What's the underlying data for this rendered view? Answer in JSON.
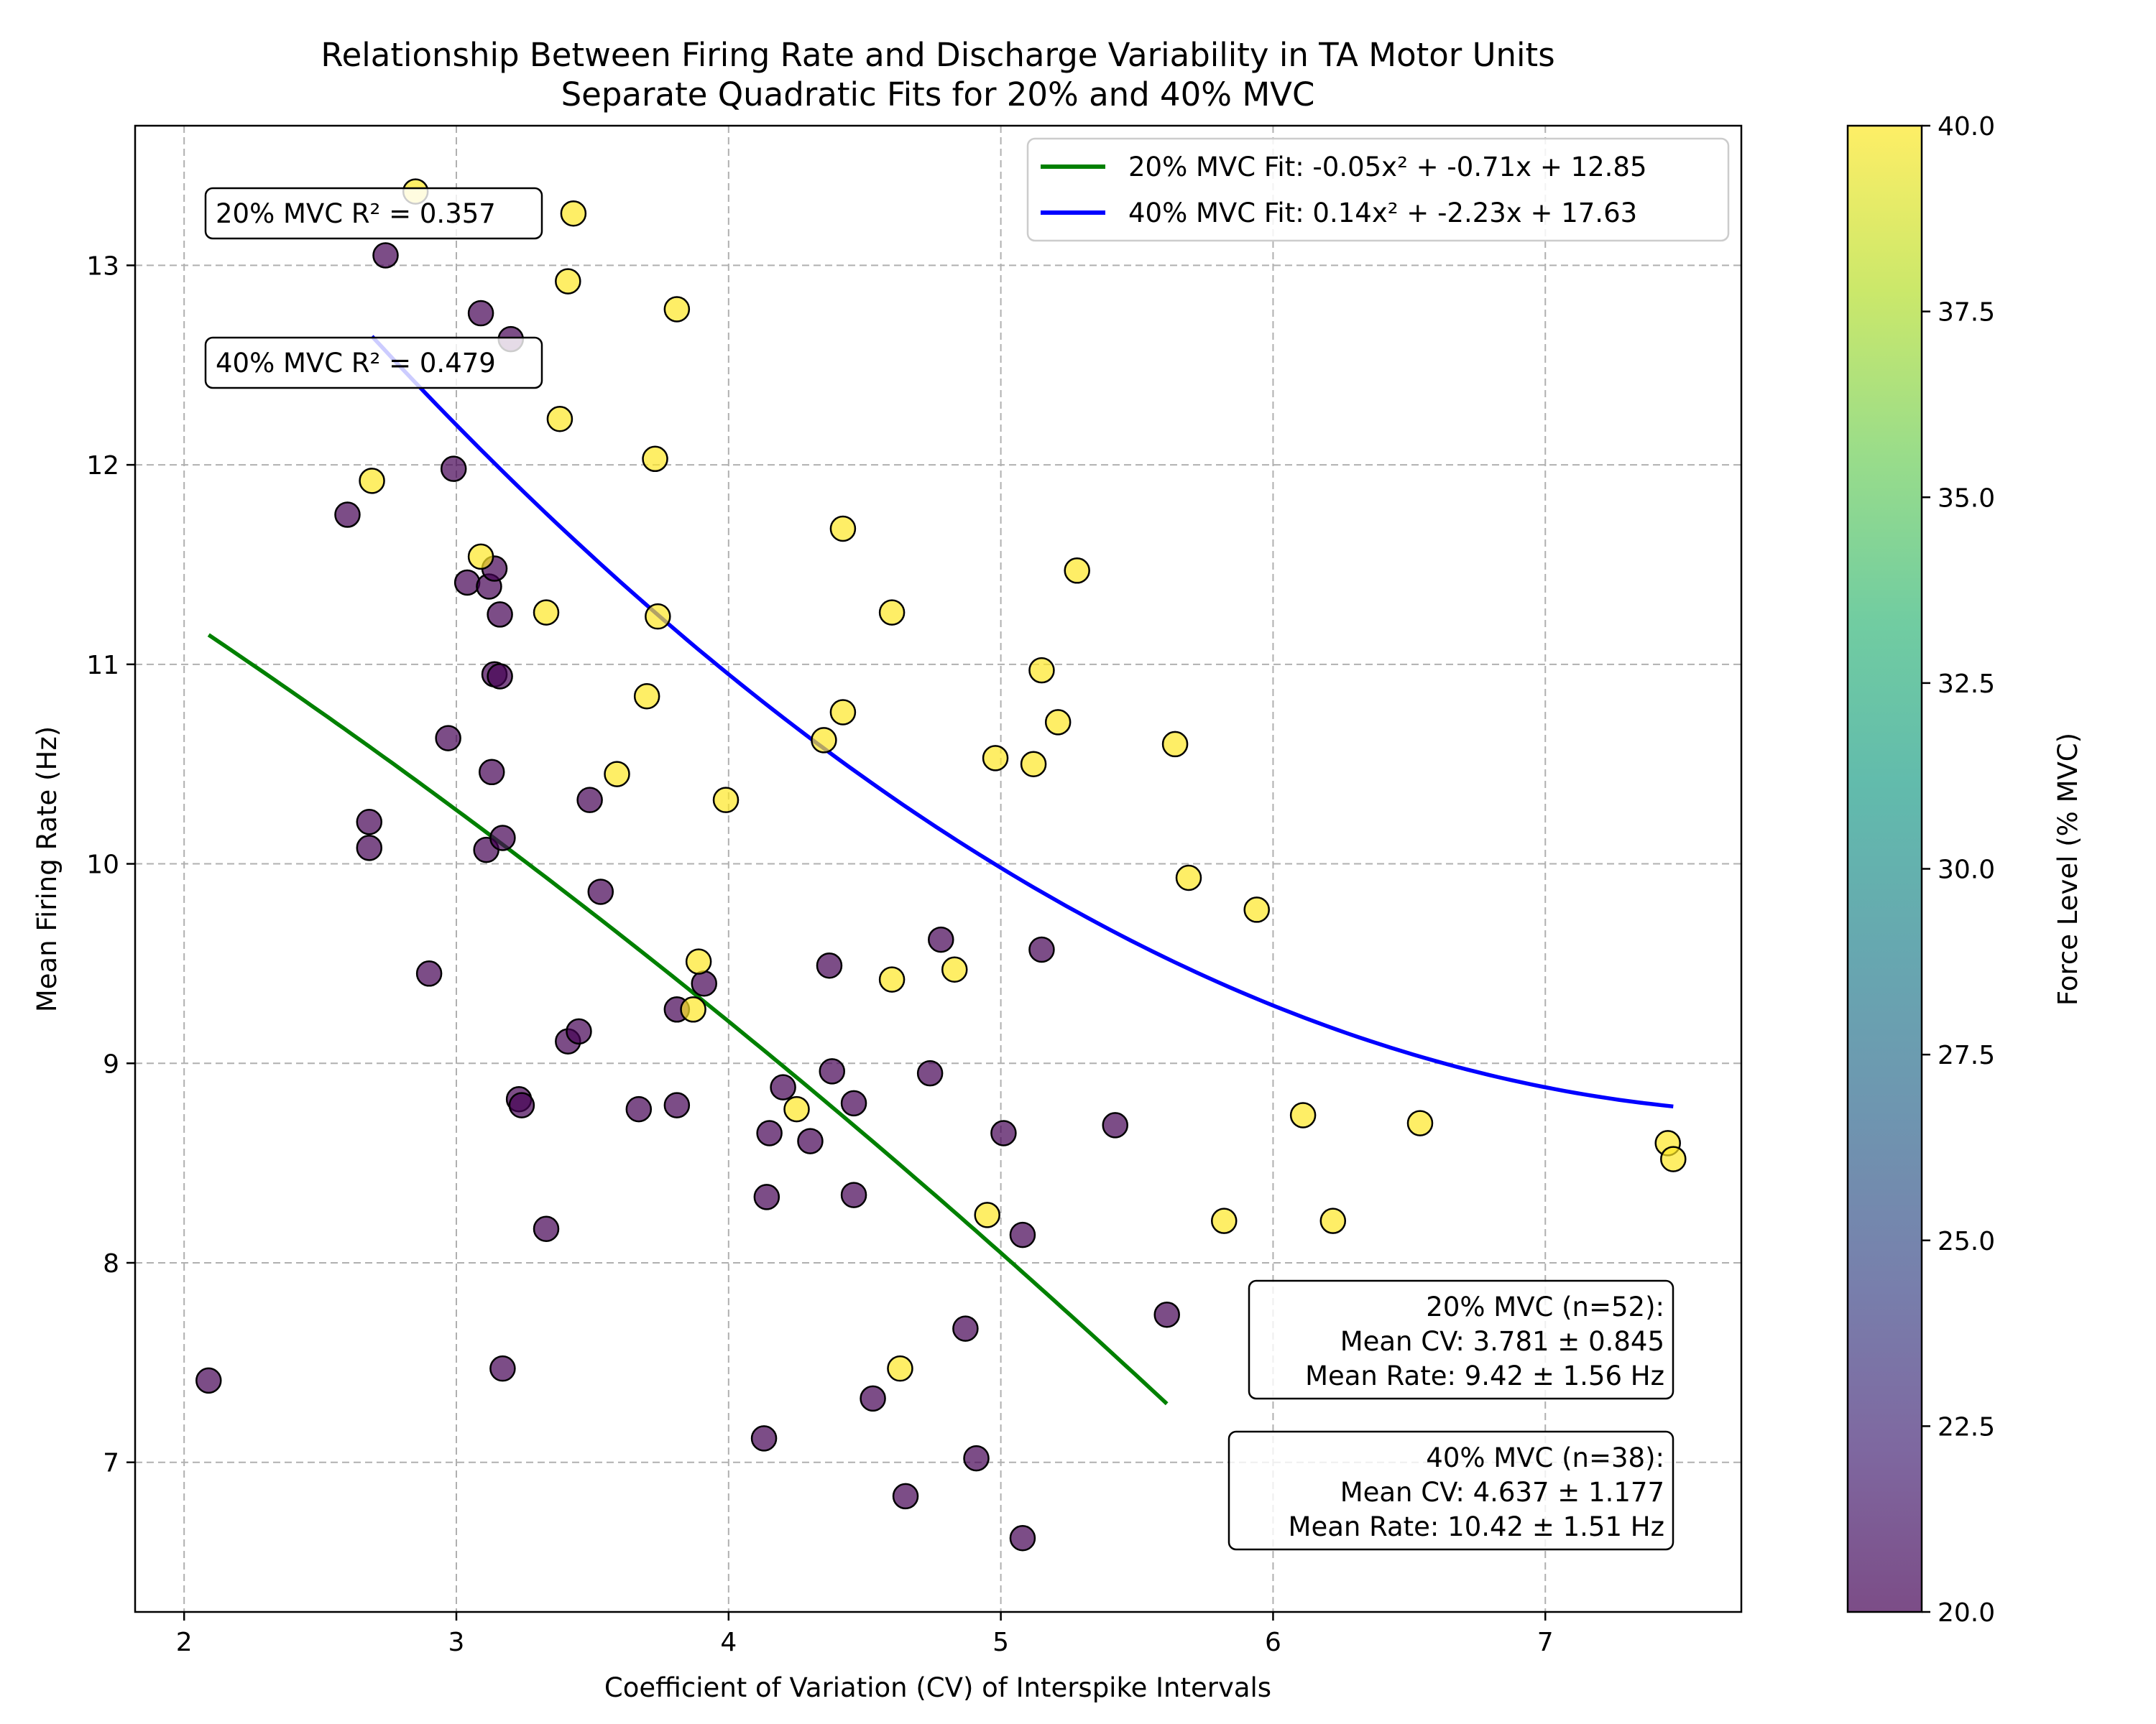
{
  "chart_data": {
    "type": "scatter",
    "title": "Relationship Between Firing Rate and Discharge Variability in TA Motor Units",
    "subtitle": "Separate Quadratic Fits for 20% and 40% MVC",
    "xlabel": "Coefficient of Variation (CV) of Interspike Intervals",
    "ylabel": "Mean Firing Rate (Hz)",
    "xlim": [
      1.82,
      7.72
    ],
    "ylim": [
      6.25,
      13.7
    ],
    "xticks": [
      "2",
      "3",
      "4",
      "5",
      "6",
      "7"
    ],
    "yticks": [
      "7",
      "8",
      "9",
      "10",
      "11",
      "12",
      "13"
    ],
    "grid": true,
    "colorbar": {
      "label": "Force Level (% MVC)",
      "min": 20.0,
      "max": 40.0,
      "ticks": [
        "20.0",
        "22.5",
        "25.0",
        "27.5",
        "30.0",
        "32.5",
        "35.0",
        "37.5",
        "40.0"
      ],
      "colors": [
        "#440154",
        "#482878",
        "#3e4989",
        "#31688e",
        "#26828e",
        "#1f9e89",
        "#35b779",
        "#6ece58",
        "#b5de2b",
        "#fde725"
      ]
    },
    "series": [
      {
        "force": 20,
        "color": "#440154",
        "points": [
          [
            2.09,
            7.41
          ],
          [
            2.6,
            11.75
          ],
          [
            2.68,
            10.21
          ],
          [
            2.68,
            10.08
          ],
          [
            2.74,
            13.05
          ],
          [
            2.9,
            9.45
          ],
          [
            2.97,
            10.63
          ],
          [
            2.99,
            11.98
          ],
          [
            3.04,
            11.41
          ],
          [
            3.09,
            12.76
          ],
          [
            3.11,
            10.07
          ],
          [
            3.12,
            11.39
          ],
          [
            3.13,
            10.46
          ],
          [
            3.14,
            11.48
          ],
          [
            3.14,
            10.95
          ],
          [
            3.16,
            11.25
          ],
          [
            3.16,
            10.94
          ],
          [
            3.17,
            10.13
          ],
          [
            3.17,
            7.47
          ],
          [
            3.2,
            12.63
          ],
          [
            3.23,
            8.82
          ],
          [
            3.24,
            8.79
          ],
          [
            3.33,
            8.17
          ],
          [
            3.41,
            9.11
          ],
          [
            3.45,
            9.16
          ],
          [
            3.49,
            10.32
          ],
          [
            3.53,
            9.86
          ],
          [
            3.67,
            8.77
          ],
          [
            3.81,
            8.79
          ],
          [
            3.81,
            9.27
          ],
          [
            3.91,
            9.4
          ],
          [
            4.13,
            7.12
          ],
          [
            4.14,
            8.33
          ],
          [
            4.15,
            8.65
          ],
          [
            4.2,
            8.88
          ],
          [
            4.3,
            8.61
          ],
          [
            4.37,
            9.49
          ],
          [
            4.38,
            8.96
          ],
          [
            4.46,
            8.8
          ],
          [
            4.46,
            8.34
          ],
          [
            4.53,
            7.32
          ],
          [
            4.65,
            6.83
          ],
          [
            4.74,
            8.95
          ],
          [
            4.78,
            9.62
          ],
          [
            4.87,
            7.67
          ],
          [
            4.91,
            7.02
          ],
          [
            5.01,
            8.65
          ],
          [
            5.08,
            8.14
          ],
          [
            5.08,
            6.62
          ],
          [
            5.15,
            9.57
          ],
          [
            5.42,
            8.69
          ],
          [
            5.61,
            7.74
          ]
        ]
      },
      {
        "force": 40,
        "color": "#fde725",
        "points": [
          [
            2.69,
            11.92
          ],
          [
            2.85,
            13.37
          ],
          [
            3.09,
            11.54
          ],
          [
            3.33,
            11.26
          ],
          [
            3.38,
            12.23
          ],
          [
            3.41,
            12.92
          ],
          [
            3.43,
            13.26
          ],
          [
            3.59,
            10.45
          ],
          [
            3.7,
            10.84
          ],
          [
            3.73,
            12.03
          ],
          [
            3.74,
            11.24
          ],
          [
            3.81,
            12.78
          ],
          [
            3.87,
            9.27
          ],
          [
            3.89,
            9.51
          ],
          [
            3.99,
            10.32
          ],
          [
            4.25,
            8.77
          ],
          [
            4.35,
            10.62
          ],
          [
            4.42,
            10.76
          ],
          [
            4.42,
            11.68
          ],
          [
            4.6,
            11.26
          ],
          [
            4.6,
            9.42
          ],
          [
            4.63,
            7.47
          ],
          [
            4.83,
            9.47
          ],
          [
            4.95,
            8.24
          ],
          [
            4.98,
            10.53
          ],
          [
            5.12,
            10.5
          ],
          [
            5.15,
            10.97
          ],
          [
            5.21,
            10.71
          ],
          [
            5.28,
            11.47
          ],
          [
            5.64,
            10.6
          ],
          [
            5.69,
            9.93
          ],
          [
            5.82,
            8.21
          ],
          [
            5.94,
            9.77
          ],
          [
            6.11,
            8.74
          ],
          [
            6.22,
            8.21
          ],
          [
            6.54,
            8.7
          ],
          [
            7.45,
            8.6
          ],
          [
            7.47,
            8.52
          ]
        ]
      }
    ],
    "fits": [
      {
        "name": "20% MVC Fit: -0.05x² + -0.71x + 12.85",
        "color": "#008000",
        "coefficients": [
          -0.05,
          -0.71,
          12.85
        ],
        "x_range": [
          2.09,
          5.61
        ],
        "curve": [
          [
            2.09,
            11.16
          ],
          [
            2.5,
            10.76
          ],
          [
            3.0,
            10.26
          ],
          [
            3.5,
            9.74
          ],
          [
            4.0,
            9.2
          ],
          [
            4.5,
            8.6
          ],
          [
            5.0,
            8.0
          ],
          [
            5.3,
            7.66
          ],
          [
            5.61,
            7.28
          ]
        ]
      },
      {
        "name": "40% MVC Fit: 0.14x² + -2.23x + 17.63",
        "color": "#0000ff",
        "coefficients": [
          0.14,
          -2.23,
          17.63
        ],
        "x_range": [
          2.69,
          7.47
        ],
        "curve": [
          [
            2.69,
            12.63
          ],
          [
            3.0,
            12.21
          ],
          [
            3.5,
            11.53
          ],
          [
            4.0,
            10.91
          ],
          [
            4.5,
            10.36
          ],
          [
            5.0,
            9.88
          ],
          [
            5.5,
            9.48
          ],
          [
            6.0,
            9.15
          ],
          [
            6.5,
            8.9
          ],
          [
            7.0,
            8.72
          ],
          [
            7.47,
            8.61
          ]
        ]
      }
    ],
    "legend": {
      "position": "top-right",
      "entries": [
        "20% MVC Fit: -0.05x² + -0.71x + 12.85",
        "40% MVC Fit: 0.14x² + -2.23x + 17.63"
      ]
    },
    "annotations": {
      "r2_20": "20% MVC R² = 0.357",
      "r2_40": "40% MVC R² = 0.479",
      "stats_20": [
        "20% MVC (n=52):",
        "Mean CV: 3.781 ± 0.845",
        "Mean Rate: 9.42 ± 1.56 Hz"
      ],
      "stats_40": [
        "40% MVC (n=38):",
        "Mean CV: 4.637 ± 1.177",
        "Mean Rate: 10.42 ± 1.51 Hz"
      ]
    }
  }
}
